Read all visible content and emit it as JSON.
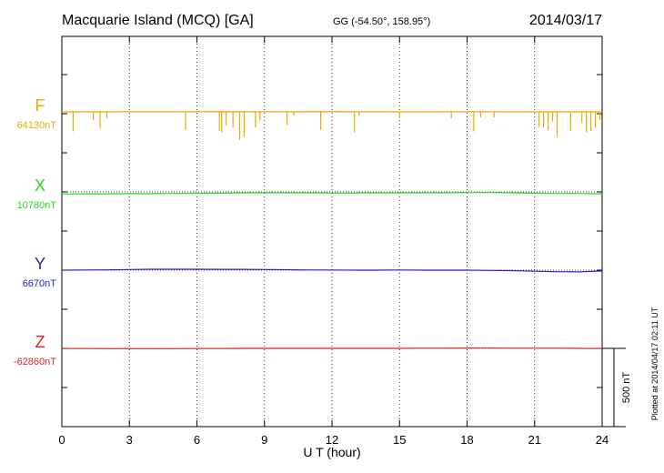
{
  "chart_data": {
    "type": "line",
    "title": "Macquarie Island (MCQ)  [GA]",
    "coords": "GG (-54.50°, 158.95°)",
    "date": "2014/03/17",
    "xlabel": "U T (hour)",
    "xlim": [
      0,
      24
    ],
    "xticks": [
      0,
      3,
      6,
      9,
      12,
      15,
      18,
      21,
      24
    ],
    "grid": "vertical dotted lines at x-ticks",
    "scale_bar_label": "500 nT",
    "scale_bar_nT": 500,
    "plotted_note": "Plotted at 2014/04/17 02:11  UT",
    "series": [
      {
        "name": "F",
        "baseline_label": "64130nT",
        "color": "#f0a800",
        "x": [
          0,
          1,
          2,
          3,
          4,
          5,
          6,
          7,
          8,
          9,
          10,
          11,
          12,
          13,
          14,
          15,
          16,
          17,
          18,
          19,
          20,
          21,
          22,
          23,
          24
        ],
        "values": [
          64130,
          64130,
          64130,
          64131,
          64131,
          64131,
          64132,
          64132,
          64132,
          64131,
          64131,
          64132,
          64132,
          64131,
          64131,
          64130,
          64130,
          64130,
          64131,
          64131,
          64130,
          64130,
          64130,
          64130,
          64130
        ],
        "spikes": [
          {
            "t": 0.5,
            "dv": -125
          },
          {
            "t": 1.4,
            "dv": -55
          },
          {
            "t": 1.7,
            "dv": -105
          },
          {
            "t": 2.0,
            "dv": -40
          },
          {
            "t": 5.5,
            "dv": -115
          },
          {
            "t": 7.0,
            "dv": -120
          },
          {
            "t": 7.1,
            "dv": -130
          },
          {
            "t": 7.3,
            "dv": -85
          },
          {
            "t": 7.6,
            "dv": -100
          },
          {
            "t": 7.9,
            "dv": -180
          },
          {
            "t": 8.1,
            "dv": -160
          },
          {
            "t": 8.6,
            "dv": -100
          },
          {
            "t": 8.8,
            "dv": -55
          },
          {
            "t": 10.0,
            "dv": -85
          },
          {
            "t": 10.3,
            "dv": -25
          },
          {
            "t": 11.5,
            "dv": -115
          },
          {
            "t": 13.0,
            "dv": -130
          },
          {
            "t": 13.2,
            "dv": -25
          },
          {
            "t": 15.0,
            "dv": -40
          },
          {
            "t": 17.3,
            "dv": -40
          },
          {
            "t": 18.3,
            "dv": -125
          },
          {
            "t": 18.6,
            "dv": -35
          },
          {
            "t": 19.2,
            "dv": -35
          },
          {
            "t": 21.2,
            "dv": -95
          },
          {
            "t": 21.4,
            "dv": -100
          },
          {
            "t": 21.6,
            "dv": -115
          },
          {
            "t": 21.8,
            "dv": -60
          },
          {
            "t": 22.0,
            "dv": -160
          },
          {
            "t": 22.6,
            "dv": -120
          },
          {
            "t": 23.1,
            "dv": -70
          },
          {
            "t": 23.3,
            "dv": -130
          },
          {
            "t": 23.5,
            "dv": -120
          },
          {
            "t": 23.7,
            "dv": -100
          },
          {
            "t": 23.9,
            "dv": -50
          }
        ]
      },
      {
        "name": "X",
        "baseline_label": "10780nT",
        "color": "#22dd22",
        "x": [
          0,
          1,
          2,
          3,
          4,
          5,
          6,
          7,
          8,
          9,
          10,
          11,
          12,
          13,
          14,
          15,
          16,
          17,
          18,
          19,
          20,
          21,
          22,
          23,
          24
        ],
        "values": [
          10767,
          10768,
          10768,
          10769,
          10769,
          10770,
          10771,
          10772,
          10774,
          10775,
          10775,
          10774,
          10773,
          10773,
          10774,
          10774,
          10775,
          10775,
          10776,
          10776,
          10775,
          10772,
          10770,
          10770,
          10768
        ]
      },
      {
        "name": "Y",
        "baseline_label": "6670nT",
        "color": "#2222dd",
        "x": [
          0,
          1,
          2,
          3,
          4,
          5,
          6,
          7,
          8,
          9,
          10,
          11,
          12,
          13,
          14,
          15,
          16,
          17,
          18,
          19,
          20,
          21,
          22,
          23,
          24
        ],
        "values": [
          6670,
          6671,
          6672,
          6674,
          6676,
          6676,
          6676,
          6675,
          6675,
          6674,
          6673,
          6671,
          6671,
          6670,
          6670,
          6671,
          6670,
          6670,
          6670,
          6668,
          6667,
          6663,
          6660,
          6659,
          6665
        ]
      },
      {
        "name": "Z",
        "baseline_label": "-62860nT",
        "color": "#dd2222",
        "x": [
          0,
          1,
          2,
          3,
          4,
          5,
          6,
          7,
          8,
          9,
          10,
          11,
          12,
          13,
          14,
          15,
          16,
          17,
          18,
          19,
          20,
          21,
          22,
          23,
          24
        ],
        "values": [
          -62861,
          -62861,
          -62862,
          -62862,
          -62862,
          -62862,
          -62861,
          -62861,
          -62860,
          -62860,
          -62860,
          -62860,
          -62860,
          -62860,
          -62860,
          -62860,
          -62859,
          -62859,
          -62858,
          -62858,
          -62859,
          -62859,
          -62859,
          -62860,
          -62861
        ]
      }
    ]
  }
}
